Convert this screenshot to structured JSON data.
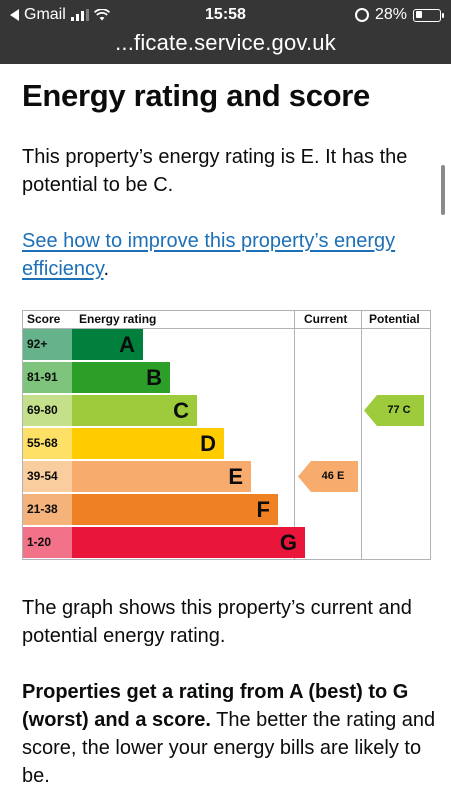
{
  "status_bar": {
    "carrier": "Gmail",
    "time": "15:58",
    "battery": "28%",
    "battery_level": 0.28
  },
  "browser": {
    "url": "...ficate.service.gov.uk"
  },
  "page": {
    "title": "Energy rating and score",
    "intro": "This property’s energy rating is E. It has the potential to be C.",
    "improve_link": "See how to improve this property’s energy efficiency",
    "improve_link_suffix": ".",
    "graph_caption": "The graph shows this property’s current and potential energy rating.",
    "ratings_bold": "Properties get a rating from A (best) to G (worst) and a score.",
    "ratings_rest": " The better the rating and score, the lower your energy bills are likely to be."
  },
  "chart_data": {
    "type": "table",
    "headers": {
      "score": "Score",
      "rating": "Energy rating",
      "current": "Current",
      "potential": "Potential"
    },
    "bands": [
      {
        "score": "92+",
        "letter": "A",
        "color": "#007f3d",
        "score_bg": "#66b28a"
      },
      {
        "score": "81-91",
        "letter": "B",
        "color": "#2c9f29",
        "score_bg": "#7fc47d"
      },
      {
        "score": "69-80",
        "letter": "C",
        "color": "#9dcb3c",
        "score_bg": "#c4e08a"
      },
      {
        "score": "55-68",
        "letter": "D",
        "color": "#ffcc00",
        "score_bg": "#ffe066"
      },
      {
        "score": "39-54",
        "letter": "E",
        "color": "#f7ac6e",
        "score_bg": "#facd9f"
      },
      {
        "score": "21-38",
        "letter": "F",
        "color": "#ef8023",
        "score_bg": "#f5b37b"
      },
      {
        "score": "1-20",
        "letter": "G",
        "color": "#e9153b",
        "score_bg": "#f27389"
      }
    ],
    "current": {
      "score": 46,
      "letter": "E",
      "label": "46 E"
    },
    "potential": {
      "score": 77,
      "letter": "C",
      "label": "77 C"
    }
  }
}
